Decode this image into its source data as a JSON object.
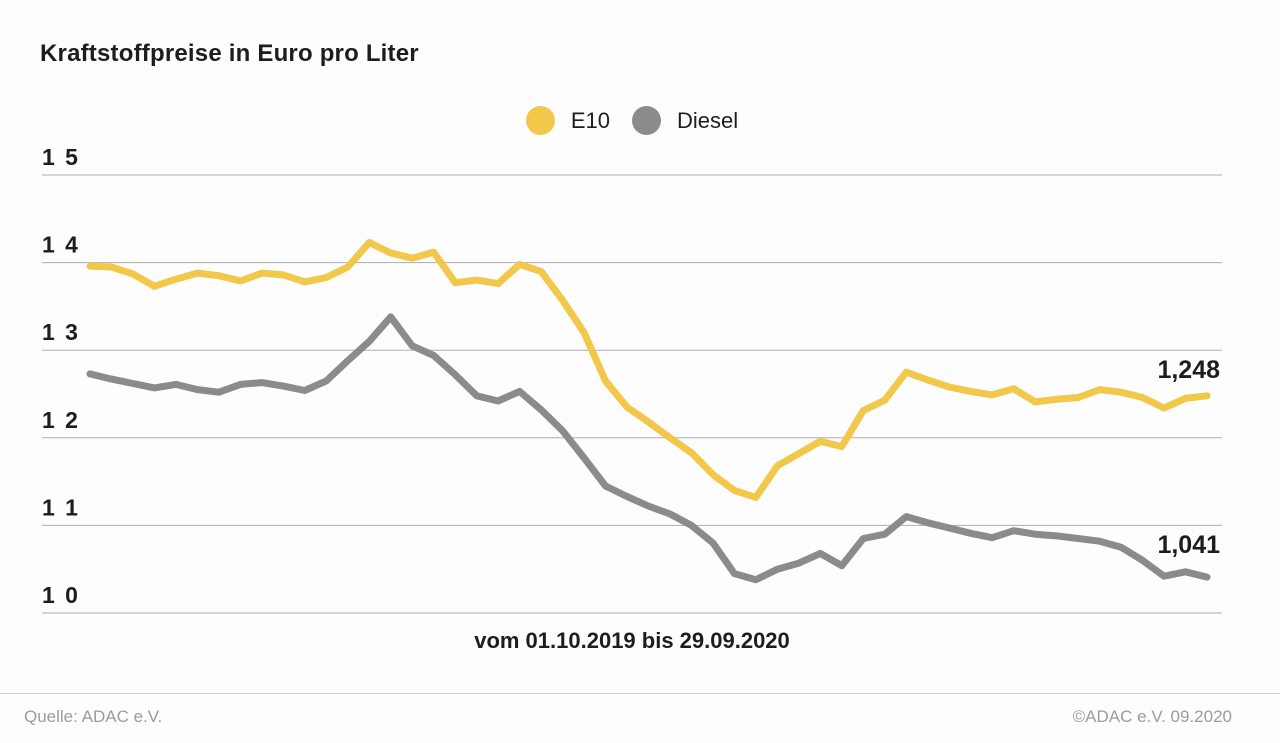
{
  "title": "Kraftstoffpreise in Euro pro Liter",
  "legend": {
    "items": [
      {
        "label": "E10",
        "color": "#f1c84a"
      },
      {
        "label": "Diesel",
        "color": "#8b8b8b"
      }
    ]
  },
  "x_caption": "vom 01.10.2019 bis 29.09.2020",
  "footer": {
    "source": "Quelle: ADAC e.V.",
    "copyright": "©ADAC e.V. 09.2020"
  },
  "colors": {
    "e10": "#f1c84a",
    "diesel": "#8b8b8b",
    "gridline": "#aeaeae",
    "text": "#1d1d1b",
    "footer_text": "#9c9c9c"
  },
  "chart_data": {
    "type": "line",
    "title": "Kraftstoffpreise in Euro pro Liter",
    "xlabel": "vom 01.10.2019 bis 29.09.2020",
    "ylabel": "",
    "ylim": [
      1.0,
      1.5
    ],
    "grid": "horizontal",
    "legend_position": "top-center",
    "x_period": {
      "from": "01.10.2019",
      "to": "29.09.2020",
      "interval": "weekly"
    },
    "yticks": {
      "values": [
        1.5,
        1.4,
        1.3,
        1.2,
        1.1,
        1.0
      ],
      "labels": [
        "1 5",
        "1 4",
        "1 3",
        "1 2",
        "1 1",
        "1 0"
      ]
    },
    "series": [
      {
        "name": "E10",
        "color": "#f1c84a",
        "end_label": "1,248",
        "end_value": 1.248,
        "values": [
          1.396,
          1.395,
          1.387,
          1.373,
          1.381,
          1.388,
          1.385,
          1.379,
          1.388,
          1.386,
          1.378,
          1.383,
          1.395,
          1.423,
          1.411,
          1.405,
          1.412,
          1.377,
          1.38,
          1.376,
          1.398,
          1.39,
          1.357,
          1.32,
          1.265,
          1.235,
          1.218,
          1.2,
          1.183,
          1.158,
          1.14,
          1.132,
          1.168,
          1.182,
          1.196,
          1.19,
          1.231,
          1.243,
          1.275,
          1.266,
          1.258,
          1.253,
          1.249,
          1.256,
          1.241,
          1.244,
          1.246,
          1.255,
          1.252,
          1.246,
          1.234,
          1.245,
          1.248
        ]
      },
      {
        "name": "Diesel",
        "color": "#8b8b8b",
        "end_label": "1,041",
        "end_value": 1.041,
        "values": [
          1.273,
          1.267,
          1.262,
          1.257,
          1.261,
          1.255,
          1.252,
          1.261,
          1.263,
          1.259,
          1.254,
          1.265,
          1.288,
          1.31,
          1.338,
          1.305,
          1.294,
          1.272,
          1.248,
          1.242,
          1.253,
          1.232,
          1.208,
          1.177,
          1.145,
          1.133,
          1.122,
          1.113,
          1.1,
          1.08,
          1.045,
          1.038,
          1.05,
          1.057,
          1.068,
          1.054,
          1.085,
          1.09,
          1.11,
          1.103,
          1.097,
          1.091,
          1.086,
          1.094,
          1.09,
          1.088,
          1.085,
          1.082,
          1.075,
          1.06,
          1.042,
          1.047,
          1.041
        ]
      }
    ]
  }
}
